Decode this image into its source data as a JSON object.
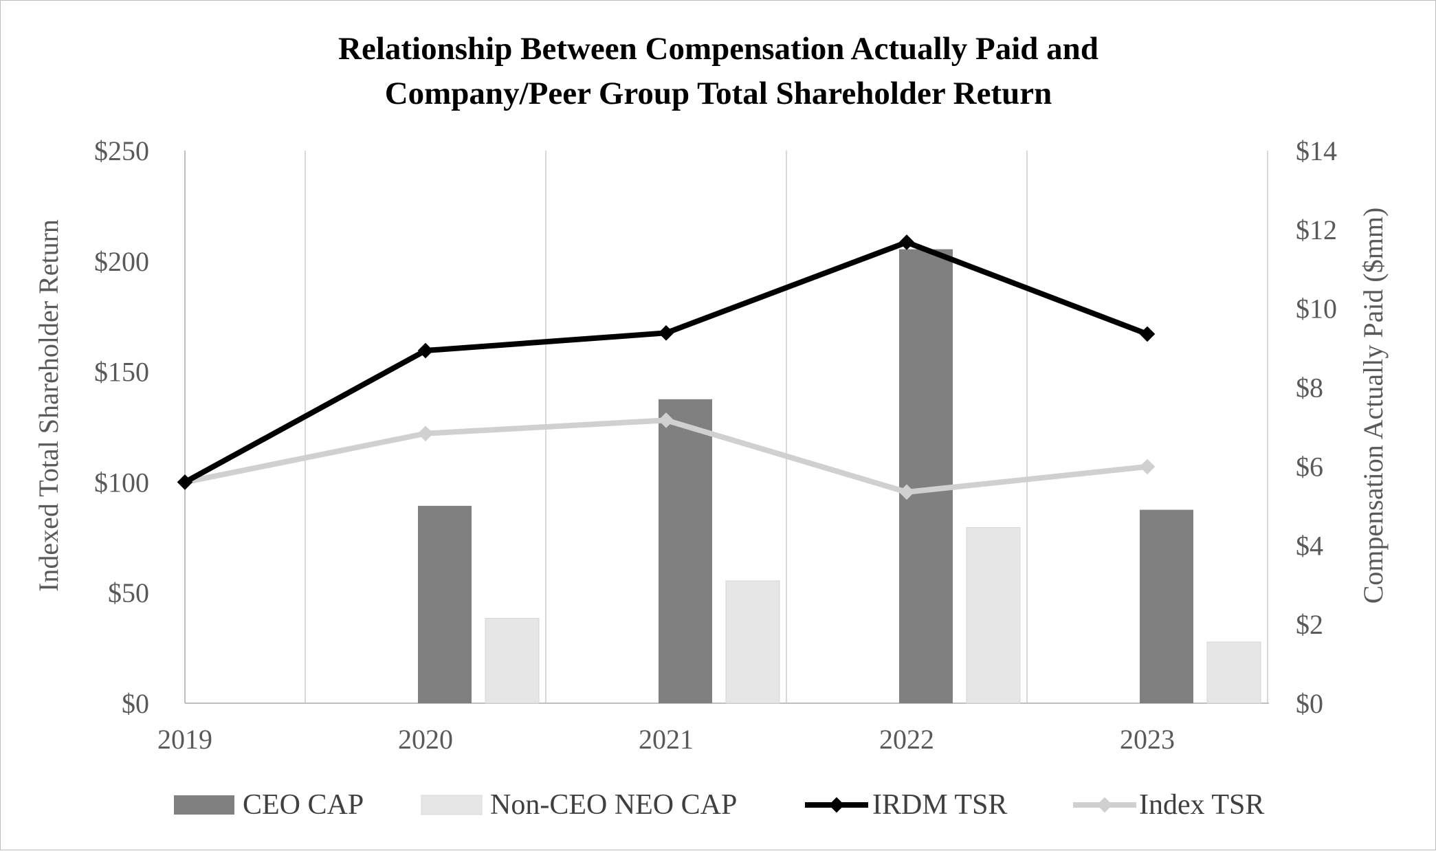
{
  "chart_data": {
    "type": "bar",
    "title": "Relationship Between Compensation Actually Paid and",
    "title_line2": "Company/Peer Group Total Shareholder Return",
    "categories": [
      "2019",
      "2020",
      "2021",
      "2022",
      "2023"
    ],
    "y_left": {
      "label": "Indexed Total Shareholder Return",
      "range": [
        0,
        250
      ],
      "ticks": [
        0,
        50,
        100,
        150,
        200,
        250
      ],
      "tick_labels": [
        "$0",
        "$50",
        "$100",
        "$150",
        "$200",
        "$250"
      ]
    },
    "y_right": {
      "label": "Compensation Actually Paid ($mm)",
      "range": [
        0,
        14
      ],
      "ticks": [
        0,
        2,
        4,
        6,
        8,
        10,
        12,
        14
      ],
      "tick_labels": [
        "$0",
        "$2",
        "$4",
        "$6",
        "$8",
        "$10",
        "$12",
        "$14"
      ]
    },
    "series": [
      {
        "name": "CEO CAP",
        "type": "bar",
        "axis": "right",
        "color": "#808080",
        "values": [
          null,
          5.0,
          7.7,
          11.5,
          4.9
        ]
      },
      {
        "name": "Non-CEO NEO CAP",
        "type": "bar",
        "axis": "right",
        "color": "#e6e6e6",
        "values": [
          null,
          2.15,
          3.1,
          4.45,
          1.55
        ]
      },
      {
        "name": "IRDM TSR",
        "type": "line",
        "axis": "left",
        "color": "#000000",
        "values": [
          100,
          159.5,
          167.5,
          208.5,
          167
        ]
      },
      {
        "name": "Index TSR",
        "type": "line",
        "axis": "left",
        "color": "#d0d0d0",
        "values": [
          100,
          122,
          128,
          95.5,
          107
        ]
      }
    ],
    "grid": "vertical category separators",
    "legend": "bottom"
  }
}
